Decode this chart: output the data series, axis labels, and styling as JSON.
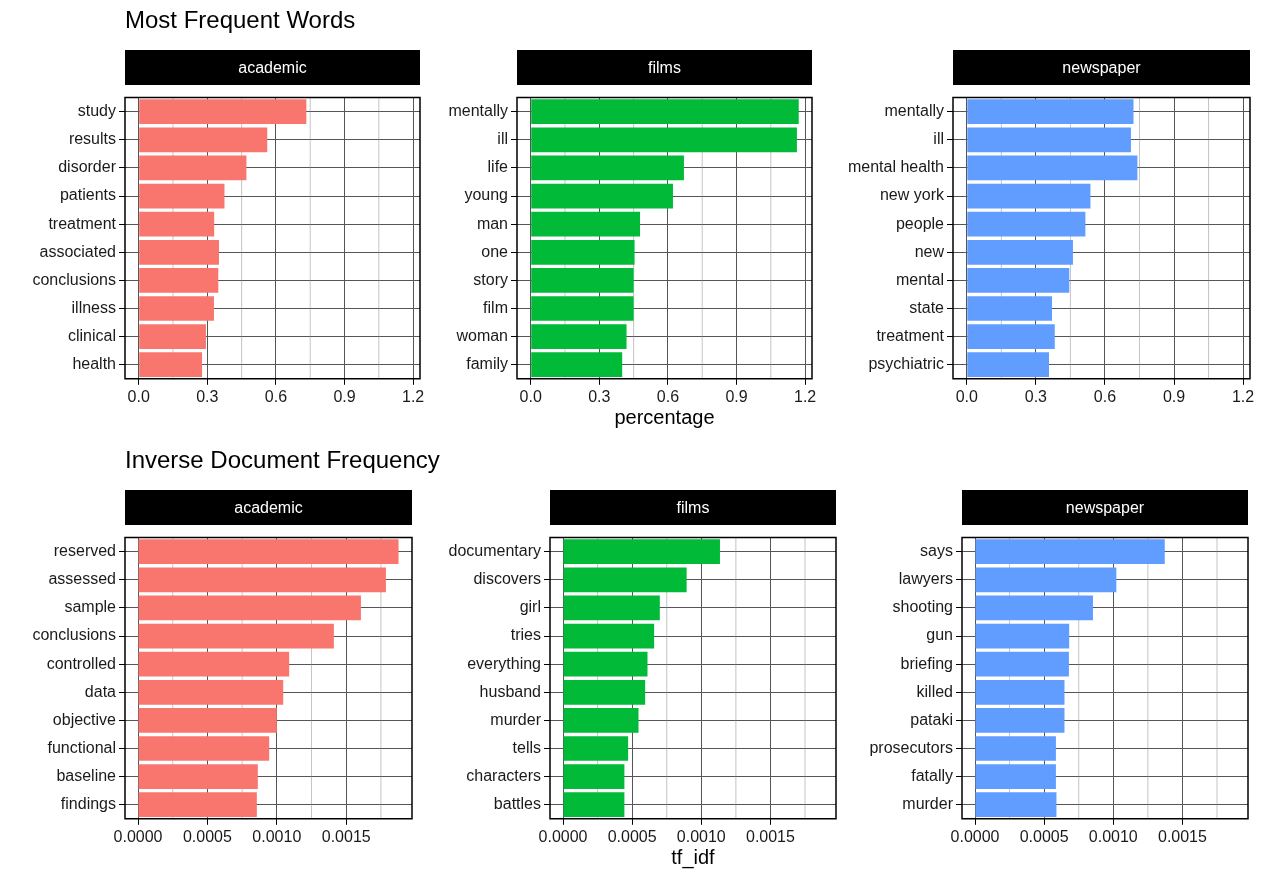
{
  "chart_data": [
    {
      "type": "bar",
      "orientation": "horizontal",
      "title": "Most Frequent Words",
      "subtitle": "academic",
      "categories": [
        "study",
        "results",
        "disorder",
        "patients",
        "treatment",
        "associated",
        "conclusions",
        "illness",
        "clinical",
        "health"
      ],
      "values": [
        0.733,
        0.562,
        0.471,
        0.375,
        0.33,
        0.351,
        0.348,
        0.329,
        0.294,
        0.277
      ],
      "color": "#f8766d",
      "xlim": [
        -0.06,
        1.23
      ],
      "xticks": [
        {
          "value": 0,
          "label": "0.0"
        },
        {
          "value": 0.3,
          "label": "0.3"
        },
        {
          "value": 0.6,
          "label": "0.6"
        },
        {
          "value": 0.9,
          "label": "0.9"
        },
        {
          "value": 1.2,
          "label": "1.2"
        }
      ],
      "grid": true
    },
    {
      "type": "bar",
      "orientation": "horizontal",
      "subtitle": "films",
      "xlabel": "percentage",
      "categories": [
        "mentally",
        "ill",
        "life",
        "young",
        "man",
        "one",
        "story",
        "film",
        "woman",
        "family"
      ],
      "values": [
        1.172,
        1.164,
        0.67,
        0.622,
        0.478,
        0.454,
        0.45,
        0.45,
        0.419,
        0.4
      ],
      "color": "#00ba38",
      "xlim": [
        -0.06,
        1.23
      ],
      "xticks": [
        {
          "value": 0,
          "label": "0.0"
        },
        {
          "value": 0.3,
          "label": "0.3"
        },
        {
          "value": 0.6,
          "label": "0.6"
        },
        {
          "value": 0.9,
          "label": "0.9"
        },
        {
          "value": 1.2,
          "label": "1.2"
        }
      ],
      "grid": true
    },
    {
      "type": "bar",
      "orientation": "horizontal",
      "subtitle": "newspaper",
      "categories": [
        "mentally",
        "ill",
        "mental health",
        "new york",
        "people",
        "new",
        "mental",
        "state",
        "treatment",
        "psychiatric"
      ],
      "values": [
        0.724,
        0.713,
        0.741,
        0.537,
        0.515,
        0.461,
        0.445,
        0.37,
        0.382,
        0.357
      ],
      "color": "#619cff",
      "xlim": [
        -0.06,
        1.23
      ],
      "xticks": [
        {
          "value": 0,
          "label": "0.0"
        },
        {
          "value": 0.3,
          "label": "0.3"
        },
        {
          "value": 0.6,
          "label": "0.6"
        },
        {
          "value": 0.9,
          "label": "0.9"
        },
        {
          "value": 1.2,
          "label": "1.2"
        }
      ],
      "grid": true
    },
    {
      "type": "bar",
      "orientation": "horizontal",
      "title": "Inverse Document Frequency",
      "subtitle": "academic",
      "categories": [
        "reserved",
        "assessed",
        "sample",
        "conclusions",
        "controlled",
        "data",
        "objective",
        "functional",
        "baseline",
        "findings"
      ],
      "values": [
        0.001877,
        0.001786,
        0.001606,
        0.001411,
        0.001089,
        0.001046,
        0.001,
        0.000945,
        0.000863,
        0.000856
      ],
      "color": "#f8766d",
      "xlim": [
        -9.4e-05,
        0.001974
      ],
      "xticks": [
        {
          "value": 0,
          "label": "0.0000"
        },
        {
          "value": 0.0005,
          "label": "0.0005"
        },
        {
          "value": 0.001,
          "label": "0.0010"
        },
        {
          "value": 0.0015,
          "label": "0.0015"
        }
      ],
      "grid": true
    },
    {
      "type": "bar",
      "orientation": "horizontal",
      "subtitle": "films",
      "xlabel": "tf_idf",
      "categories": [
        "documentary",
        "discovers",
        "girl",
        "tries",
        "everything",
        "husband",
        "murder",
        "tells",
        "characters",
        "battles"
      ],
      "values": [
        0.001135,
        0.000894,
        0.0007,
        0.000659,
        0.000611,
        0.000594,
        0.000546,
        0.000471,
        0.000444,
        0.000444
      ],
      "color": "#00ba38",
      "xlim": [
        -9.4e-05,
        0.001974
      ],
      "xticks": [
        {
          "value": 0,
          "label": "0.0000"
        },
        {
          "value": 0.0005,
          "label": "0.0005"
        },
        {
          "value": 0.001,
          "label": "0.0010"
        },
        {
          "value": 0.0015,
          "label": "0.0015"
        }
      ],
      "grid": true
    },
    {
      "type": "bar",
      "orientation": "horizontal",
      "subtitle": "newspaper",
      "categories": [
        "says",
        "lawyers",
        "shooting",
        "gun",
        "briefing",
        "killed",
        "pataki",
        "prosecutors",
        "fatally",
        "murder"
      ],
      "values": [
        0.001372,
        0.001022,
        0.000853,
        0.000681,
        0.000679,
        0.000647,
        0.000647,
        0.000585,
        0.000585,
        0.000589
      ],
      "color": "#619cff",
      "xlim": [
        -9.4e-05,
        0.001974
      ],
      "xticks": [
        {
          "value": 0,
          "label": "0.0000"
        },
        {
          "value": 0.0005,
          "label": "0.0005"
        },
        {
          "value": 0.001,
          "label": "0.0010"
        },
        {
          "value": 0.0015,
          "label": "0.0015"
        }
      ],
      "grid": true
    }
  ]
}
